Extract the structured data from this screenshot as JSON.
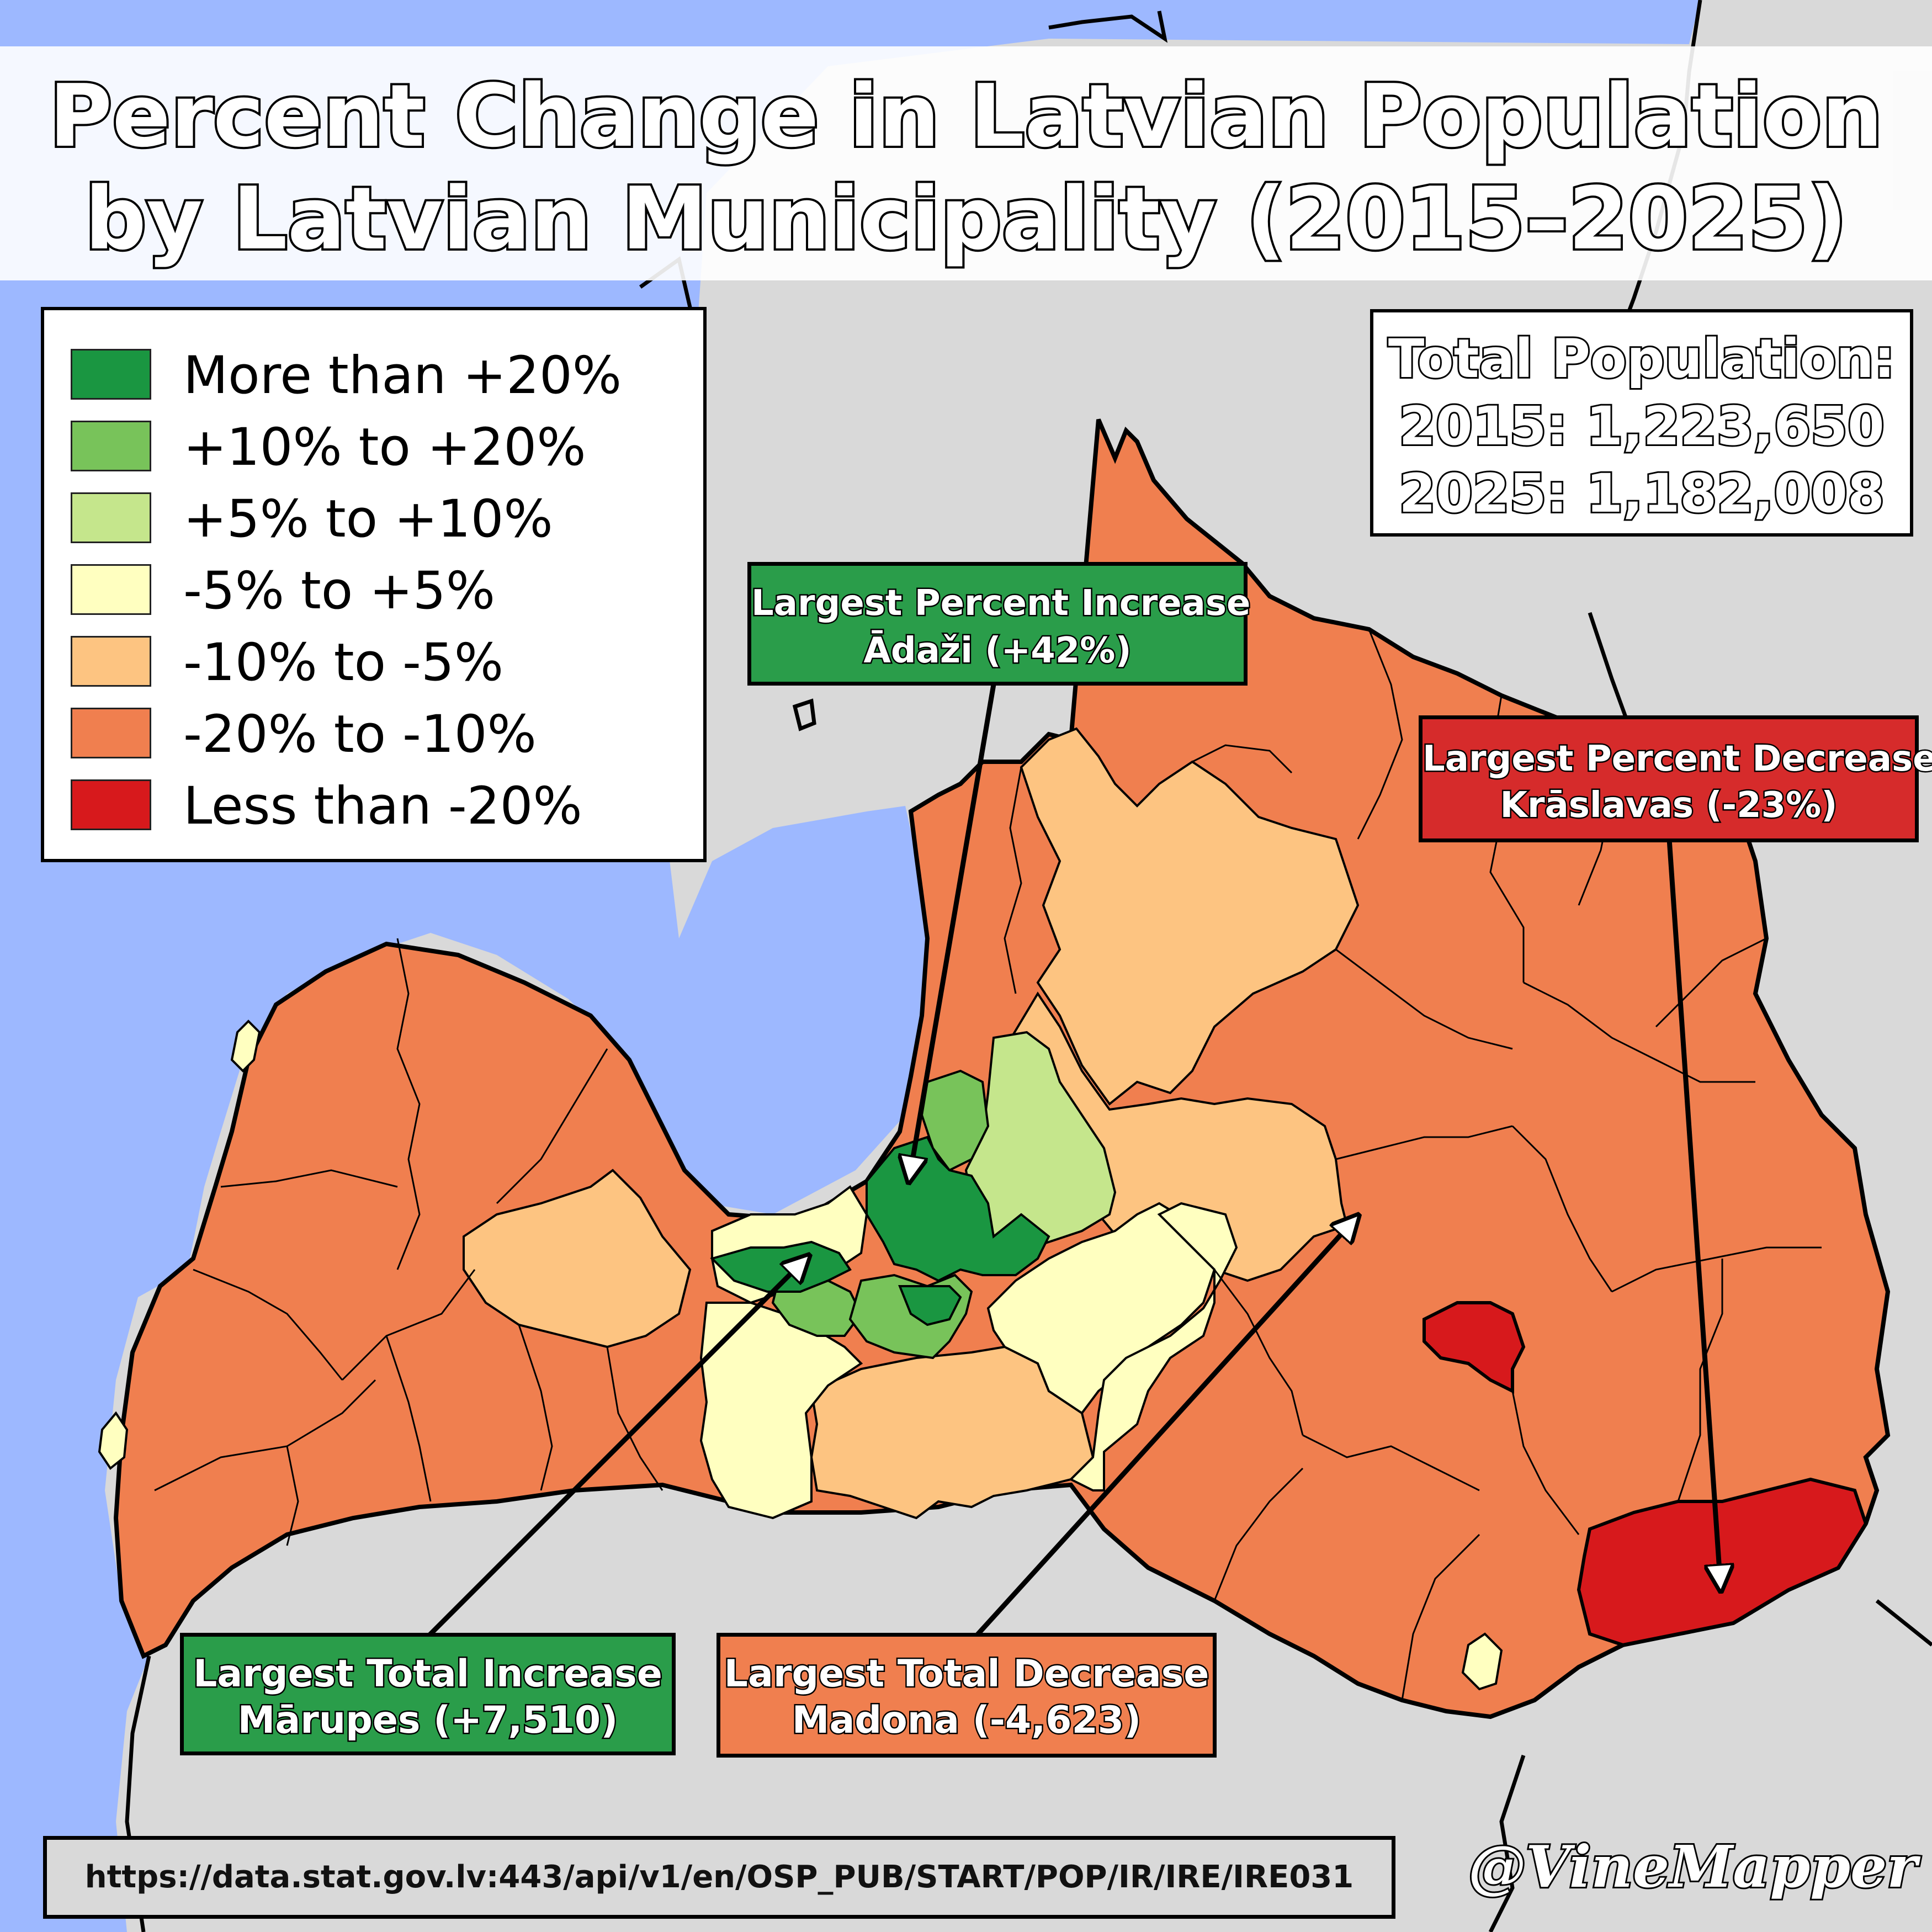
{
  "title": {
    "line1": "Percent Change in Latvian Population",
    "line2": "by Latvian Municipality (2015–2025)"
  },
  "legend": {
    "items": [
      {
        "label": "More than +20%",
        "color": "#1a9641"
      },
      {
        "label": "+10% to +20%",
        "color": "#78c35a"
      },
      {
        "label": "+5% to +10%",
        "color": "#c5e68c"
      },
      {
        "label": "-5% to +5%",
        "color": "#ffffc0"
      },
      {
        "label": "-10% to -5%",
        "color": "#fdc481"
      },
      {
        "label": "-20% to -10%",
        "color": "#f07f4f"
      },
      {
        "label": "Less than -20%",
        "color": "#d7191c"
      }
    ]
  },
  "totals": {
    "heading": "Total Population:",
    "line_2015": "2015: 1,223,650",
    "line_2025": "2025: 1,182,008"
  },
  "callouts": {
    "percent_increase": {
      "heading": "Largest Percent Increase",
      "detail": "Ādaži (+42%)",
      "color": "#2a9d4a"
    },
    "percent_decrease": {
      "heading": "Largest Percent Decrease",
      "detail": "Krāslavas (-23%)",
      "color": "#d62b2b"
    },
    "total_increase": {
      "heading": "Largest Total Increase",
      "detail": "Mārupes (+7,510)",
      "color": "#2a9d4a"
    },
    "total_decrease": {
      "heading": "Largest Total Decrease",
      "detail": "Madona (-4,623)",
      "color": "#f07f4f"
    }
  },
  "source": "https://data.stat.gov.lv:443/api/v1/en/OSP_PUB/START/POP/IR/IRE/IRE031",
  "signature": "@VineMapper",
  "colors": {
    "sea": "#9db8ff",
    "neighbor_land": "#d9d9d9",
    "border": "#000000"
  }
}
